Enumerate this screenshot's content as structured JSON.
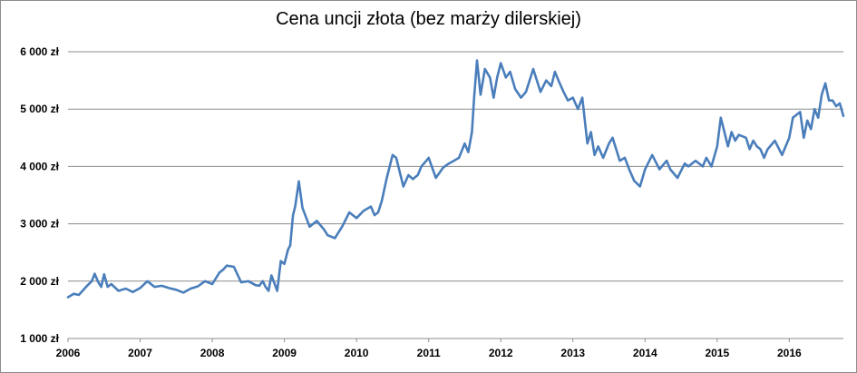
{
  "chart_data": {
    "type": "line",
    "title": "Cena uncji złota (bez marży dilerskiej)",
    "xlabel": "",
    "ylabel": "",
    "xlim": [
      2006,
      2016.75
    ],
    "ylim": [
      1000,
      6000
    ],
    "grid": "horizontal",
    "legend": "none",
    "y_ticks": [
      {
        "value": 1000,
        "label": "1 000 zł"
      },
      {
        "value": 2000,
        "label": "2 000 zł"
      },
      {
        "value": 3000,
        "label": "3 000 zł"
      },
      {
        "value": 4000,
        "label": "4 000 zł"
      },
      {
        "value": 5000,
        "label": "5 000 zł"
      },
      {
        "value": 6000,
        "label": "6 000 zł"
      }
    ],
    "x_ticks": [
      {
        "value": 2006,
        "label": "2006"
      },
      {
        "value": 2007,
        "label": "2007"
      },
      {
        "value": 2008,
        "label": "2008"
      },
      {
        "value": 2009,
        "label": "2009"
      },
      {
        "value": 2010,
        "label": "2010"
      },
      {
        "value": 2011,
        "label": "2011"
      },
      {
        "value": 2012,
        "label": "2012"
      },
      {
        "value": 2013,
        "label": "2013"
      },
      {
        "value": 2014,
        "label": "2014"
      },
      {
        "value": 2015,
        "label": "2015"
      },
      {
        "value": 2016,
        "label": "2016"
      }
    ],
    "series": [
      {
        "color": "#4a7ebb",
        "x": [
          2006.0,
          2006.08,
          2006.15,
          2006.25,
          2006.33,
          2006.37,
          2006.42,
          2006.46,
          2006.5,
          2006.55,
          2006.6,
          2006.7,
          2006.8,
          2006.9,
          2007.0,
          2007.1,
          2007.2,
          2007.3,
          2007.4,
          2007.5,
          2007.6,
          2007.7,
          2007.8,
          2007.9,
          2008.0,
          2008.1,
          2008.15,
          2008.2,
          2008.3,
          2008.4,
          2008.5,
          2008.6,
          2008.65,
          2008.7,
          2008.74,
          2008.78,
          2008.82,
          2008.9,
          2008.95,
          2009.0,
          2009.05,
          2009.08,
          2009.12,
          2009.15,
          2009.2,
          2009.25,
          2009.35,
          2009.45,
          2009.55,
          2009.6,
          2009.7,
          2009.8,
          2009.9,
          2010.0,
          2010.1,
          2010.2,
          2010.25,
          2010.3,
          2010.35,
          2010.42,
          2010.5,
          2010.55,
          2010.65,
          2010.72,
          2010.78,
          2010.85,
          2010.9,
          2011.0,
          2011.1,
          2011.2,
          2011.28,
          2011.35,
          2011.42,
          2011.5,
          2011.55,
          2011.6,
          2011.63,
          2011.67,
          2011.72,
          2011.78,
          2011.85,
          2011.9,
          2011.95,
          2012.0,
          2012.07,
          2012.13,
          2012.2,
          2012.28,
          2012.35,
          2012.45,
          2012.55,
          2012.63,
          2012.7,
          2012.75,
          2012.8,
          2012.87,
          2012.93,
          2013.0,
          2013.07,
          2013.13,
          2013.2,
          2013.25,
          2013.3,
          2013.35,
          2013.42,
          2013.5,
          2013.55,
          2013.65,
          2013.72,
          2013.78,
          2013.85,
          2013.93,
          2014.0,
          2014.1,
          2014.2,
          2014.3,
          2014.35,
          2014.45,
          2014.55,
          2014.6,
          2014.7,
          2014.8,
          2014.85,
          2014.92,
          2015.0,
          2015.05,
          2015.1,
          2015.15,
          2015.2,
          2015.25,
          2015.3,
          2015.4,
          2015.45,
          2015.5,
          2015.55,
          2015.6,
          2015.65,
          2015.7,
          2015.8,
          2015.9,
          2016.0,
          2016.05,
          2016.1,
          2016.15,
          2016.2,
          2016.25,
          2016.3,
          2016.35,
          2016.4,
          2016.45,
          2016.5,
          2016.55,
          2016.6,
          2016.65,
          2016.7,
          2016.75
        ],
        "y": [
          1720,
          1780,
          1760,
          1900,
          2000,
          2130,
          1980,
          1900,
          2120,
          1900,
          1950,
          1830,
          1870,
          1810,
          1880,
          2000,
          1900,
          1920,
          1880,
          1850,
          1800,
          1870,
          1910,
          2000,
          1950,
          2150,
          2200,
          2270,
          2250,
          1980,
          2000,
          1930,
          1920,
          2000,
          1900,
          1830,
          2100,
          1830,
          2350,
          2300,
          2550,
          2620,
          3150,
          3300,
          3740,
          3280,
          2950,
          3050,
          2900,
          2800,
          2750,
          2950,
          3200,
          3100,
          3230,
          3300,
          3150,
          3200,
          3400,
          3800,
          4200,
          4150,
          3650,
          3850,
          3780,
          3850,
          4000,
          4150,
          3800,
          3980,
          4050,
          4100,
          4150,
          4400,
          4250,
          4600,
          5200,
          5850,
          5250,
          5700,
          5550,
          5200,
          5550,
          5800,
          5550,
          5650,
          5350,
          5200,
          5300,
          5700,
          5300,
          5500,
          5400,
          5650,
          5500,
          5300,
          5150,
          5200,
          5000,
          5200,
          4400,
          4600,
          4200,
          4350,
          4150,
          4400,
          4500,
          4100,
          4150,
          3950,
          3750,
          3650,
          3950,
          4200,
          3950,
          4100,
          3950,
          3800,
          4050,
          4000,
          4100,
          4000,
          4150,
          4000,
          4350,
          4850,
          4600,
          4350,
          4600,
          4450,
          4550,
          4500,
          4300,
          4450,
          4350,
          4300,
          4150,
          4300,
          4450,
          4200,
          4500,
          4850,
          4900,
          4950,
          4500,
          4800,
          4650,
          5000,
          4850,
          5250,
          5450,
          5150,
          5150,
          5050,
          5100,
          4880
        ]
      }
    ]
  }
}
